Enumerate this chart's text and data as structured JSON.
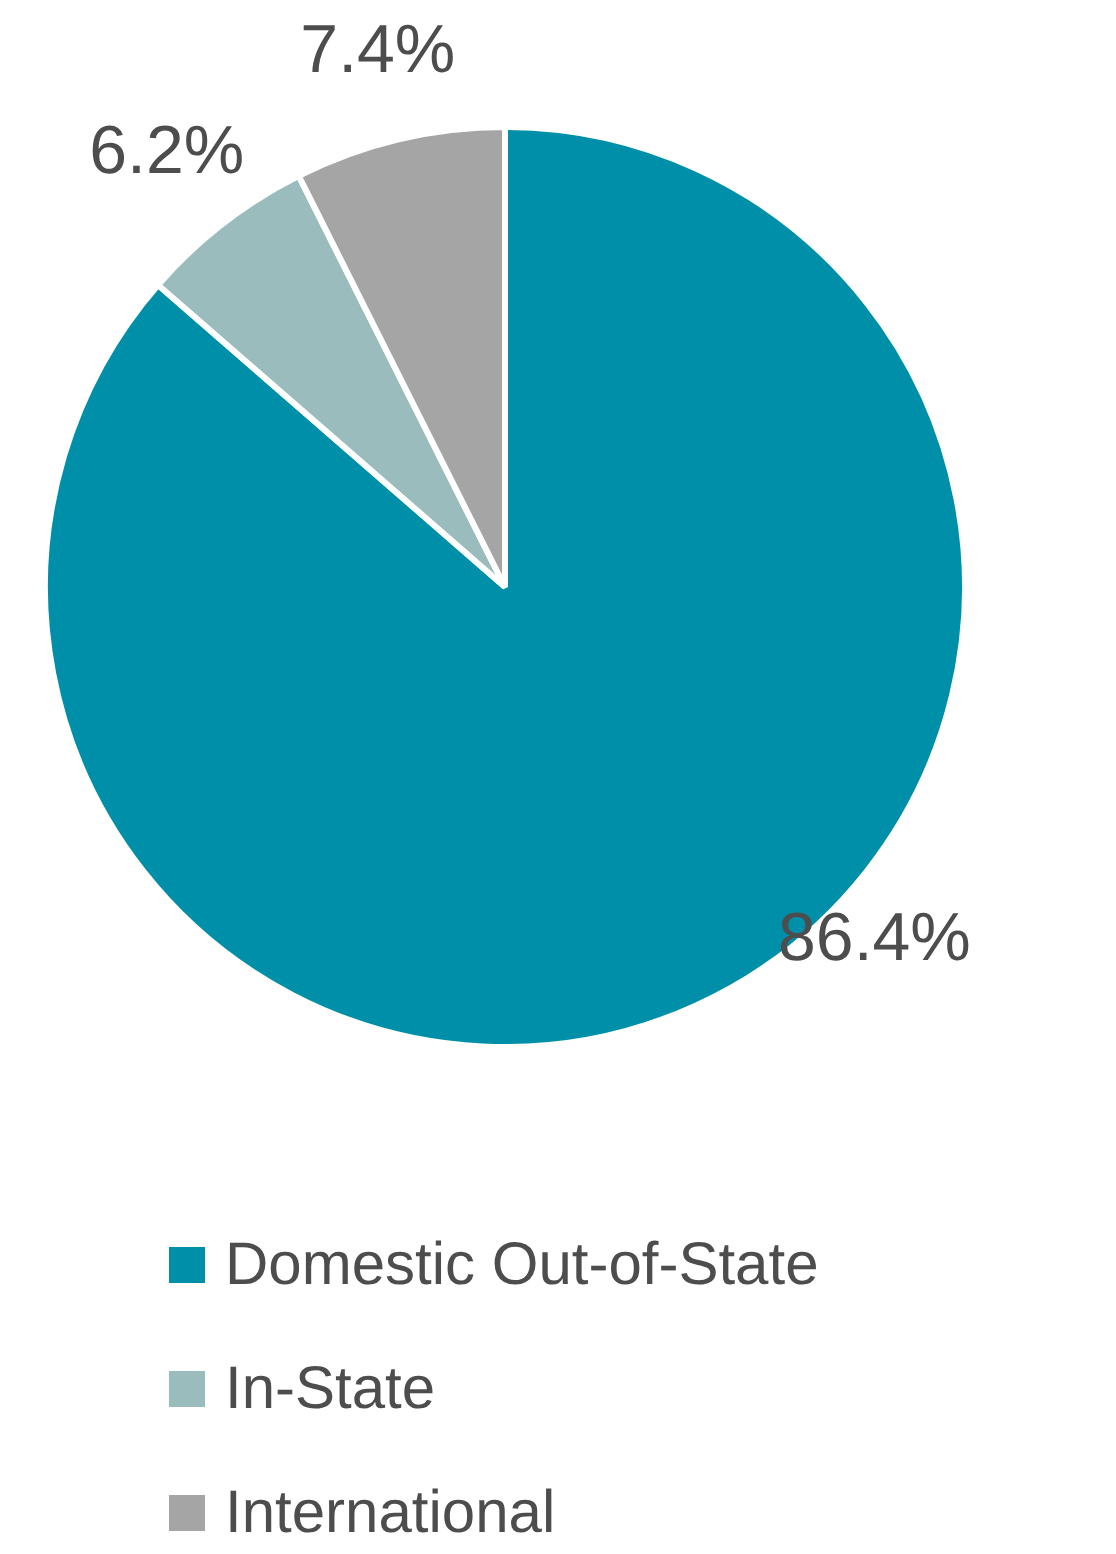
{
  "chart_data": {
    "type": "pie",
    "categories": [
      "Domestic Out-of-State",
      "In-State",
      "International"
    ],
    "values": [
      86.4,
      6.2,
      7.4
    ],
    "colors": [
      "#008fa8",
      "#9bbcbc",
      "#a5a5a5"
    ],
    "value_labels": [
      "86.4%",
      "6.2%",
      "7.4%"
    ],
    "legend": "bottom"
  }
}
